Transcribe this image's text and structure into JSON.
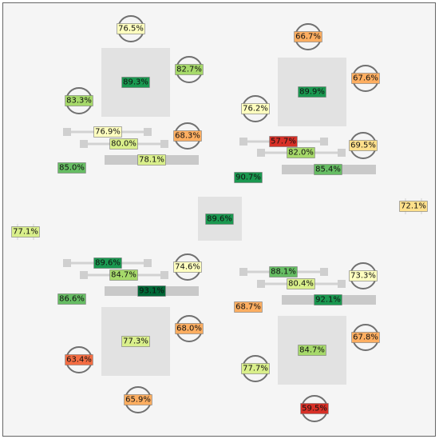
{
  "colors": {
    "background": "#f5f5f5",
    "scale": [
      "#a50026",
      "#d73027",
      "#f46d43",
      "#fdae61",
      "#fee08b",
      "#ffffbf",
      "#d9ef8b",
      "#a6d96a",
      "#66bd63",
      "#1a9850",
      "#006837"
    ]
  },
  "readings": [
    {
      "id": "q1-room",
      "value": 89.3,
      "label": "89.3%"
    },
    {
      "id": "q1-top",
      "value": 76.5,
      "label": "76.5%"
    },
    {
      "id": "q1-right",
      "value": 82.7,
      "label": "82.7%"
    },
    {
      "id": "q1-left",
      "value": 83.3,
      "label": "83.3%"
    },
    {
      "id": "q1-slider-a",
      "value": 76.9,
      "label": "76.9%"
    },
    {
      "id": "q1-slider-b",
      "value": 80.0,
      "label": "80.0%"
    },
    {
      "id": "q1-bar",
      "value": 78.1,
      "label": "78.1%"
    },
    {
      "id": "q1-side",
      "value": 68.3,
      "label": "68.3%"
    },
    {
      "id": "q1-edge",
      "value": 85.0,
      "label": "85.0%"
    },
    {
      "id": "q2-room",
      "value": 89.9,
      "label": "89.9%"
    },
    {
      "id": "q2-top",
      "value": 66.7,
      "label": "66.7%"
    },
    {
      "id": "q2-right",
      "value": 67.6,
      "label": "67.6%"
    },
    {
      "id": "q2-left",
      "value": 76.2,
      "label": "76.2%"
    },
    {
      "id": "q2-slider-a",
      "value": 57.7,
      "label": "57.7%"
    },
    {
      "id": "q2-slider-b",
      "value": 82.0,
      "label": "82.0%"
    },
    {
      "id": "q2-bar",
      "value": 85.4,
      "label": "85.4%"
    },
    {
      "id": "q2-side",
      "value": 69.5,
      "label": "69.5%"
    },
    {
      "id": "q2-edge",
      "value": 90.7,
      "label": "90.7%"
    },
    {
      "id": "center",
      "value": 89.6,
      "label": "89.6%"
    },
    {
      "id": "east",
      "value": 72.1,
      "label": "72.1%"
    },
    {
      "id": "west",
      "value": 77.1,
      "label": "77.1%"
    },
    {
      "id": "q3-slider-a",
      "value": 89.6,
      "label": "89.6%"
    },
    {
      "id": "q3-slider-b",
      "value": 84.7,
      "label": "84.7%"
    },
    {
      "id": "q3-bar",
      "value": 93.1,
      "label": "93.1%"
    },
    {
      "id": "q3-side",
      "value": 74.6,
      "label": "74.6%"
    },
    {
      "id": "q3-edge",
      "value": 86.6,
      "label": "86.6%"
    },
    {
      "id": "q3-room",
      "value": 77.3,
      "label": "77.3%"
    },
    {
      "id": "q3-right",
      "value": 68.0,
      "label": "68.0%"
    },
    {
      "id": "q3-left",
      "value": 63.4,
      "label": "63.4%"
    },
    {
      "id": "q3-bottom",
      "value": 65.9,
      "label": "65.9%"
    },
    {
      "id": "q4-slider-a",
      "value": 88.1,
      "label": "88.1%"
    },
    {
      "id": "q4-slider-b",
      "value": 80.4,
      "label": "80.4%"
    },
    {
      "id": "q4-bar",
      "value": 92.1,
      "label": "92.1%"
    },
    {
      "id": "q4-side",
      "value": 73.3,
      "label": "73.3%"
    },
    {
      "id": "q4-edge",
      "value": 68.7,
      "label": "68.7%"
    },
    {
      "id": "q4-room",
      "value": 84.7,
      "label": "84.7%"
    },
    {
      "id": "q4-right",
      "value": 67.8,
      "label": "67.8%"
    },
    {
      "id": "q4-left",
      "value": 77.7,
      "label": "77.7%"
    },
    {
      "id": "q4-bottom",
      "value": 59.5,
      "label": "59.5%"
    }
  ]
}
